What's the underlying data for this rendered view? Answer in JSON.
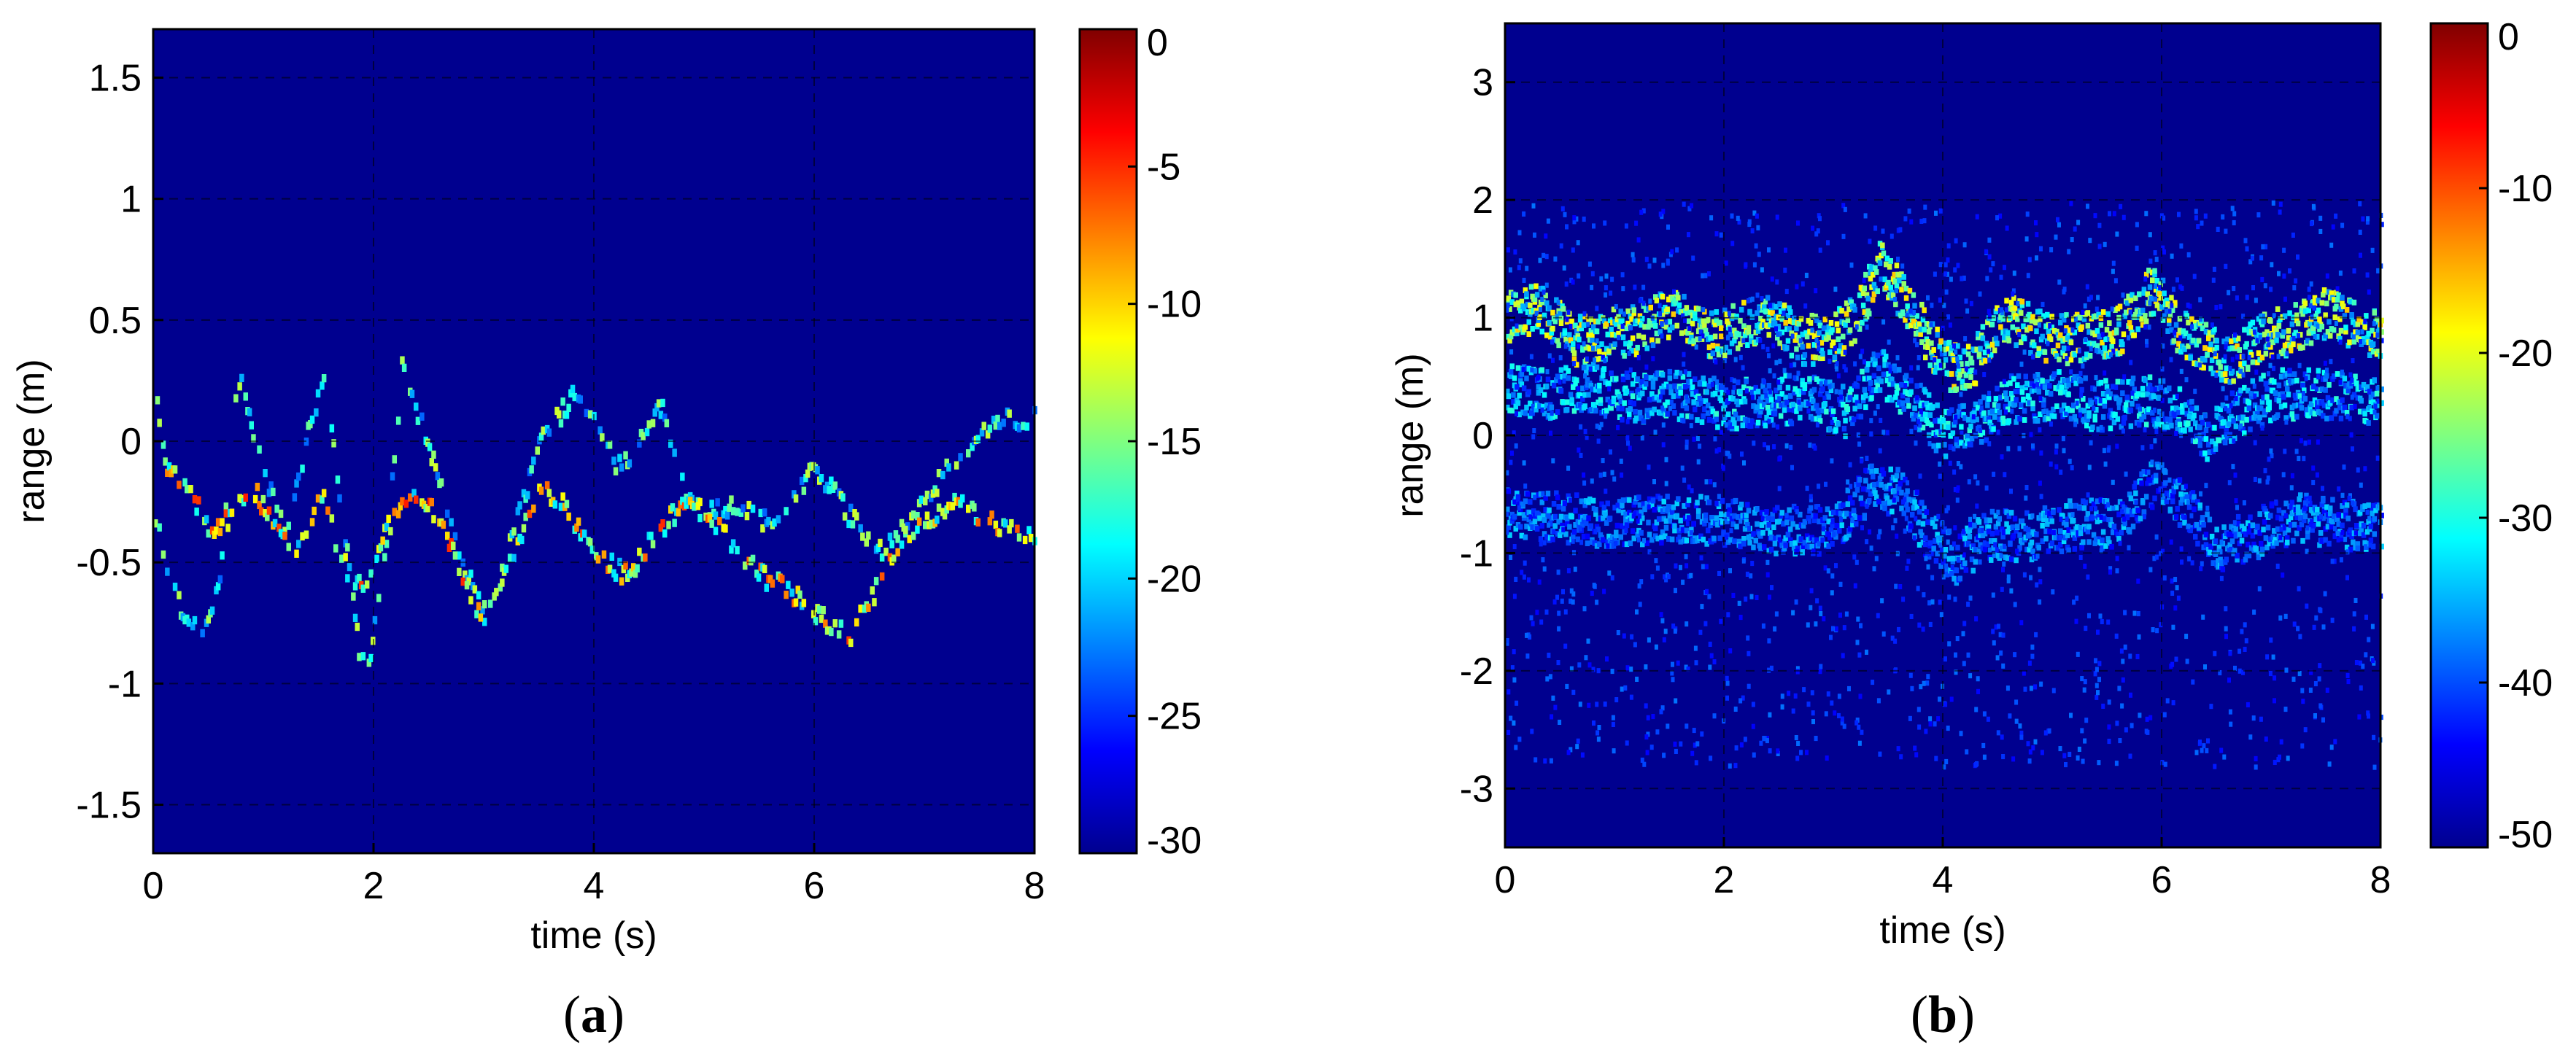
{
  "chart_data": [
    {
      "type": "heatmap",
      "id": "a",
      "panel_label": "a",
      "xlabel": "time (s)",
      "ylabel": "range (m)",
      "xlim": [
        0,
        8
      ],
      "ylim": [
        -1.7,
        1.7
      ],
      "xticks": [
        0,
        2,
        4,
        6,
        8
      ],
      "yticks": [
        -1.5,
        -1,
        -0.5,
        0,
        0.5,
        1,
        1.5
      ],
      "ytick_labels": [
        "-1.5",
        "-1",
        "-0.5",
        "0",
        "0.5",
        "1",
        "1.5"
      ],
      "xtick_labels": [
        "0",
        "2",
        "4",
        "6",
        "8"
      ],
      "grid": true,
      "colorbar": {
        "min": -30,
        "max": 0,
        "ticks": [
          0,
          -5,
          -10,
          -15,
          -20,
          -25,
          -30
        ],
        "tick_labels": [
          "0",
          "-5",
          "-10",
          "-15",
          "-20",
          "-25",
          "-30"
        ]
      },
      "colormap": "jet",
      "background_color": "#00008f",
      "traces": [
        {
          "points": [
            [
              0,
              -0.3
            ],
            [
              0.15,
              -0.6
            ],
            [
              0.3,
              -0.75
            ],
            [
              0.45,
              -0.8
            ],
            [
              0.6,
              -0.5
            ],
            [
              0.75,
              0.3
            ],
            [
              0.9,
              0.0
            ],
            [
              1.0,
              -0.15
            ],
            [
              1.2,
              -0.4
            ],
            [
              1.4,
              0.1
            ],
            [
              1.55,
              0.25
            ],
            [
              1.7,
              -0.3
            ],
            [
              1.85,
              -0.85
            ],
            [
              1.95,
              -0.9
            ],
            [
              2.1,
              -0.4
            ],
            [
              2.25,
              0.35
            ],
            [
              2.4,
              0.1
            ],
            [
              2.6,
              -0.2
            ],
            [
              2.8,
              -0.5
            ],
            [
              3.0,
              -0.75
            ],
            [
              3.2,
              -0.45
            ],
            [
              3.5,
              0.0
            ],
            [
              3.8,
              0.2
            ],
            [
              4.0,
              0.1
            ],
            [
              4.2,
              -0.1
            ],
            [
              4.4,
              0.0
            ],
            [
              4.6,
              0.15
            ],
            [
              4.8,
              -0.2
            ],
            [
              5.0,
              -0.3
            ],
            [
              5.3,
              -0.25
            ],
            [
              5.6,
              -0.35
            ],
            [
              5.8,
              -0.2
            ],
            [
              6.0,
              -0.1
            ],
            [
              6.3,
              -0.3
            ],
            [
              6.6,
              -0.45
            ],
            [
              6.9,
              -0.3
            ],
            [
              7.2,
              -0.1
            ],
            [
              7.5,
              0.05
            ],
            [
              7.8,
              0.1
            ],
            [
              8.0,
              0.1
            ]
          ],
          "intensity": 0.35
        },
        {
          "points": [
            [
              0,
              0.2
            ],
            [
              0.1,
              -0.1
            ],
            [
              0.3,
              -0.2
            ],
            [
              0.5,
              -0.35
            ],
            [
              0.7,
              -0.3
            ],
            [
              0.9,
              -0.2
            ],
            [
              1.1,
              -0.35
            ],
            [
              1.3,
              -0.45
            ],
            [
              1.5,
              -0.2
            ],
            [
              1.7,
              -0.5
            ],
            [
              1.9,
              -0.6
            ],
            [
              2.1,
              -0.35
            ],
            [
              2.3,
              -0.2
            ],
            [
              2.5,
              -0.25
            ],
            [
              2.7,
              -0.45
            ],
            [
              2.9,
              -0.7
            ],
            [
              3.1,
              -0.65
            ],
            [
              3.3,
              -0.4
            ],
            [
              3.5,
              -0.2
            ],
            [
              3.7,
              -0.25
            ],
            [
              3.9,
              -0.4
            ],
            [
              4.1,
              -0.5
            ],
            [
              4.3,
              -0.55
            ],
            [
              4.5,
              -0.4
            ],
            [
              4.7,
              -0.3
            ],
            [
              4.9,
              -0.25
            ],
            [
              5.1,
              -0.35
            ],
            [
              5.3,
              -0.45
            ],
            [
              5.5,
              -0.55
            ],
            [
              5.7,
              -0.6
            ],
            [
              5.9,
              -0.65
            ],
            [
              6.1,
              -0.75
            ],
            [
              6.3,
              -0.8
            ],
            [
              6.5,
              -0.65
            ],
            [
              6.7,
              -0.45
            ],
            [
              6.9,
              -0.35
            ],
            [
              7.1,
              -0.3
            ],
            [
              7.3,
              -0.25
            ],
            [
              7.5,
              -0.3
            ],
            [
              7.7,
              -0.35
            ],
            [
              8.0,
              -0.4
            ]
          ],
          "intensity": 0.5
        }
      ]
    },
    {
      "type": "heatmap",
      "id": "b",
      "panel_label": "b",
      "xlabel": "time (s)",
      "ylabel": "range (m)",
      "xlim": [
        0,
        8
      ],
      "ylim": [
        -3.5,
        3.5
      ],
      "xticks": [
        0,
        2,
        4,
        6,
        8
      ],
      "yticks": [
        -3,
        -2,
        -1,
        0,
        1,
        2,
        3
      ],
      "ytick_labels": [
        "-3",
        "-2",
        "-1",
        "0",
        "1",
        "2",
        "3"
      ],
      "xtick_labels": [
        "0",
        "2",
        "4",
        "6",
        "8"
      ],
      "grid": true,
      "colorbar": {
        "min": -50,
        "max": 0,
        "ticks": [
          0,
          -10,
          -20,
          -30,
          -40,
          -50
        ],
        "tick_labels": [
          "0",
          "-10",
          "-20",
          "-30",
          "-40",
          "-50"
        ]
      },
      "colormap": "jet",
      "background_color": "#00008f",
      "traces": [
        {
          "points": [
            [
              0,
              1.0
            ],
            [
              0.3,
              1.1
            ],
            [
              0.6,
              0.8
            ],
            [
              0.9,
              0.85
            ],
            [
              1.2,
              0.9
            ],
            [
              1.5,
              1.05
            ],
            [
              1.8,
              0.85
            ],
            [
              2.1,
              0.9
            ],
            [
              2.4,
              1.0
            ],
            [
              2.7,
              0.8
            ],
            [
              3.0,
              0.85
            ],
            [
              3.2,
              1.0
            ],
            [
              3.4,
              1.45
            ],
            [
              3.6,
              1.2
            ],
            [
              3.8,
              0.9
            ],
            [
              4.0,
              0.6
            ],
            [
              4.2,
              0.55
            ],
            [
              4.4,
              0.8
            ],
            [
              4.6,
              1.0
            ],
            [
              4.8,
              0.9
            ],
            [
              5.0,
              0.8
            ],
            [
              5.3,
              0.85
            ],
            [
              5.6,
              0.9
            ],
            [
              5.9,
              1.25
            ],
            [
              6.1,
              0.95
            ],
            [
              6.3,
              0.8
            ],
            [
              6.6,
              0.6
            ],
            [
              6.9,
              0.85
            ],
            [
              7.2,
              0.9
            ],
            [
              7.5,
              1.05
            ],
            [
              7.8,
              0.9
            ],
            [
              8.0,
              0.85
            ]
          ],
          "intensity": 0.4
        },
        {
          "points": [
            [
              0,
              0.4
            ],
            [
              0.4,
              0.35
            ],
            [
              0.8,
              0.4
            ],
            [
              1.2,
              0.3
            ],
            [
              1.6,
              0.35
            ],
            [
              2.0,
              0.25
            ],
            [
              2.4,
              0.3
            ],
            [
              2.8,
              0.3
            ],
            [
              3.1,
              0.2
            ],
            [
              3.4,
              0.55
            ],
            [
              3.7,
              0.3
            ],
            [
              4.0,
              0.0
            ],
            [
              4.3,
              0.1
            ],
            [
              4.6,
              0.3
            ],
            [
              5.0,
              0.35
            ],
            [
              5.4,
              0.25
            ],
            [
              5.8,
              0.3
            ],
            [
              6.1,
              0.25
            ],
            [
              6.4,
              0.0
            ],
            [
              6.7,
              0.2
            ],
            [
              7.0,
              0.35
            ],
            [
              7.4,
              0.35
            ],
            [
              8.0,
              0.3
            ]
          ],
          "intensity": 0.25
        },
        {
          "points": [
            [
              0,
              -0.65
            ],
            [
              0.5,
              -0.7
            ],
            [
              1.0,
              -0.75
            ],
            [
              1.5,
              -0.7
            ],
            [
              2.0,
              -0.75
            ],
            [
              2.5,
              -0.8
            ],
            [
              3.0,
              -0.8
            ],
            [
              3.3,
              -0.45
            ],
            [
              3.6,
              -0.5
            ],
            [
              3.9,
              -0.9
            ],
            [
              4.1,
              -1.05
            ],
            [
              4.4,
              -0.85
            ],
            [
              4.8,
              -0.85
            ],
            [
              5.2,
              -0.75
            ],
            [
              5.6,
              -0.75
            ],
            [
              5.9,
              -0.4
            ],
            [
              6.2,
              -0.6
            ],
            [
              6.5,
              -0.95
            ],
            [
              6.8,
              -0.85
            ],
            [
              7.2,
              -0.7
            ],
            [
              7.6,
              -0.75
            ],
            [
              8.0,
              -0.8
            ]
          ],
          "intensity": 0.2
        }
      ]
    }
  ]
}
